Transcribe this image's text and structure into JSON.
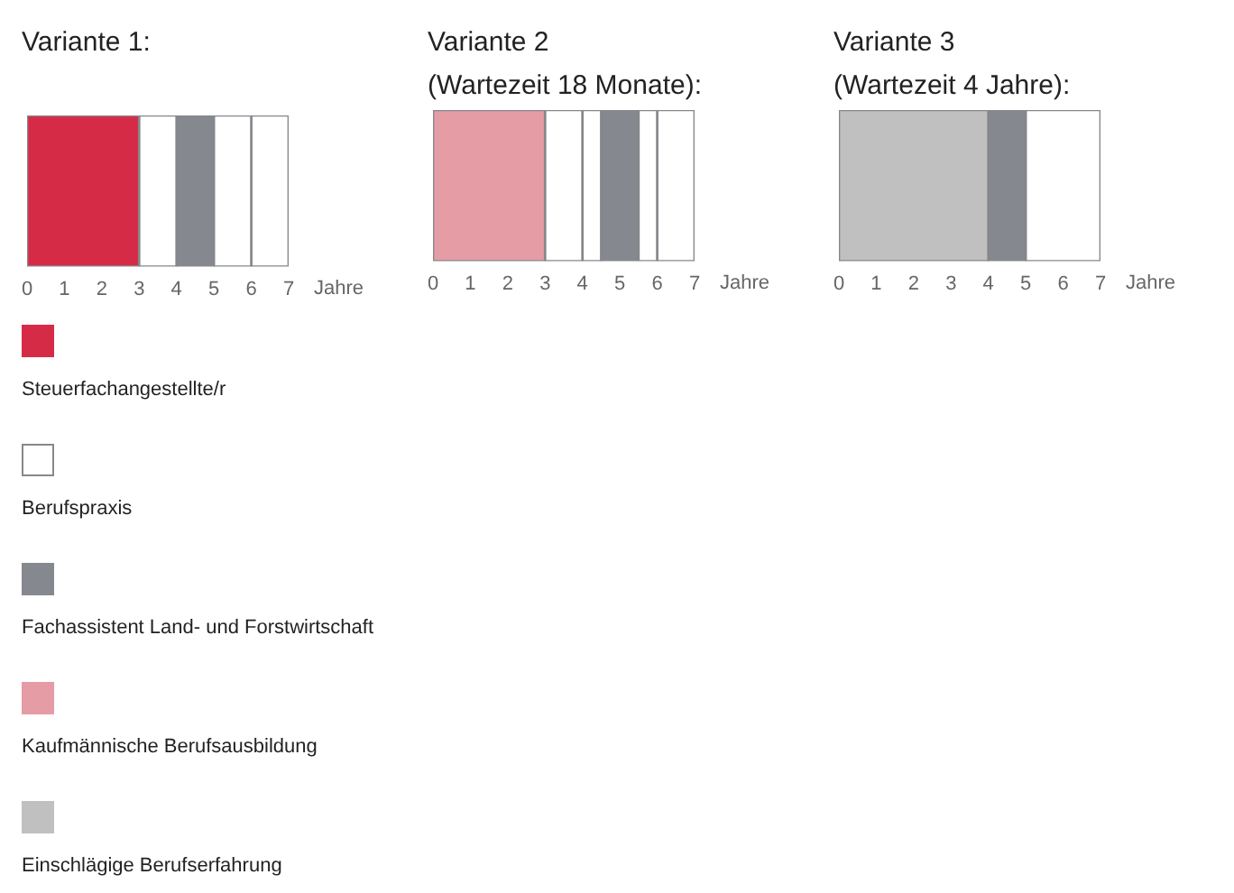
{
  "chart_data": [
    {
      "type": "bar",
      "orientation": "horizontal",
      "stacked": true,
      "title": "Variante 1:",
      "xlabel": "Jahre",
      "categories": [
        null
      ],
      "xlim": [
        0,
        7
      ],
      "xticks": [
        0,
        1,
        2,
        3,
        4,
        5,
        6,
        7
      ],
      "grid": false,
      "legend": "bottom",
      "series": [
        {
          "name": "Steuerfachangestellte/r",
          "color": "#d62b46",
          "values": [
            3
          ]
        },
        {
          "name": "Berufspraxis",
          "color": "#ffffff",
          "values": [
            1
          ]
        },
        {
          "name": "Fachassistent Land- und Forstwirtschaft",
          "color": "#868890",
          "values": [
            1
          ]
        },
        {
          "color": "#ffffff",
          "values": [
            1
          ]
        },
        {
          "color": "#ffffff",
          "values": [
            1
          ]
        }
      ]
    },
    {
      "type": "bar",
      "orientation": "horizontal",
      "stacked": true,
      "title": "Variante 2",
      "subtitle": "(Wartezeit 18 Monate):",
      "xlabel": "Jahre",
      "categories": [
        null
      ],
      "xlim": [
        0,
        7
      ],
      "xticks": [
        0,
        1,
        2,
        3,
        4,
        5,
        6,
        7
      ],
      "grid": false,
      "series": [
        {
          "name": "Kaufmännische Berufsausbildung",
          "color": "#e59ca5",
          "values": [
            3
          ]
        },
        {
          "name": "Berufspraxis",
          "color": "#ffffff",
          "values": [
            1
          ]
        },
        {
          "color": "#ffffff",
          "values": [
            0.5
          ]
        },
        {
          "name": "Fachassistent Land- und Forstwirtschaft",
          "color": "#868890",
          "values": [
            1
          ]
        },
        {
          "color": "#ffffff",
          "values": [
            0.5
          ]
        },
        {
          "color": "#ffffff",
          "values": [
            1
          ]
        }
      ]
    },
    {
      "type": "bar",
      "orientation": "horizontal",
      "stacked": true,
      "title": "Variante 3",
      "subtitle": "(Wartezeit 4 Jahre):",
      "xlabel": "Jahre",
      "categories": [
        null
      ],
      "xlim": [
        0,
        7
      ],
      "xticks": [
        0,
        1,
        2,
        3,
        4,
        5,
        6,
        7
      ],
      "grid": false,
      "series": [
        {
          "name": "Einschlägige Berufserfahrung",
          "color": "#c0c0c0",
          "values": [
            4
          ]
        },
        {
          "name": "Fachassistent Land- und Forstwirtschaft",
          "color": "#868890",
          "values": [
            1
          ]
        },
        {
          "name": "Berufspraxis",
          "color": "#ffffff",
          "values": [
            2
          ]
        }
      ]
    }
  ]
}
